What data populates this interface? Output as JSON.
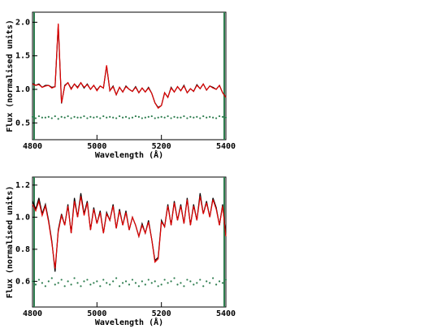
{
  "chart_data": [
    {
      "type": "line",
      "xlabel": "Wavelength (Å)",
      "ylabel": "Flux (normalised units)",
      "x": [
        4800,
        4810,
        4820,
        4830,
        4840,
        4850,
        4860,
        4870,
        4880,
        4890,
        4900,
        4910,
        4920,
        4930,
        4940,
        4950,
        4960,
        4970,
        4980,
        4990,
        5000,
        5010,
        5020,
        5030,
        5040,
        5050,
        5060,
        5070,
        5080,
        5090,
        5100,
        5110,
        5120,
        5130,
        5140,
        5150,
        5160,
        5170,
        5180,
        5190,
        5200,
        5210,
        5220,
        5230,
        5240,
        5250,
        5260,
        5270,
        5280,
        5290,
        5300,
        5310,
        5320,
        5330,
        5340,
        5350,
        5360,
        5370,
        5380,
        5390,
        5400
      ],
      "xlim": [
        4800,
        5400
      ],
      "xticks": [
        4800,
        5000,
        5200,
        5400
      ],
      "ylim": [
        0.25,
        2.15
      ],
      "yticks": [
        0.5,
        {
          "value": 1,
          "label": "1.0"
        },
        1.5,
        {
          "value": 2,
          "label": "2.0"
        }
      ],
      "series": [
        {
          "color": "#000000",
          "values": [
            1.09,
            1.06,
            1.08,
            1.03,
            1.06,
            1.06,
            1.03,
            1.04,
            1.96,
            0.79,
            1.06,
            1.1,
            1.01,
            1.08,
            1.03,
            1.1,
            1.02,
            1.08,
            1.0,
            1.06,
            0.99,
            1.05,
            1.02,
            1.35,
            0.98,
            1.05,
            0.92,
            1.03,
            0.96,
            1.05,
            1.0,
            0.97,
            1.04,
            0.95,
            1.02,
            0.96,
            1.03,
            0.94,
            0.8,
            0.73,
            0.76,
            0.95,
            0.88,
            1.03,
            0.96,
            1.04,
            0.98,
            1.06,
            0.95,
            1.01,
            0.97,
            1.07,
            1.01,
            1.08,
            0.99,
            1.05,
            1.03,
            1.0,
            1.06,
            0.95,
            0.88
          ]
        },
        {
          "color": "#e00000",
          "values": [
            1.08,
            1.06,
            1.07,
            1.03,
            1.05,
            1.06,
            1.02,
            1.04,
            1.98,
            0.8,
            1.05,
            1.1,
            1.0,
            1.08,
            1.02,
            1.1,
            1.03,
            1.07,
            1.0,
            1.06,
            0.98,
            1.05,
            1.02,
            1.36,
            0.98,
            1.04,
            0.92,
            1.03,
            0.96,
            1.04,
            1.0,
            0.97,
            1.03,
            0.95,
            1.02,
            0.96,
            1.02,
            0.94,
            0.8,
            0.72,
            0.76,
            0.95,
            0.88,
            1.02,
            0.96,
            1.04,
            0.98,
            1.05,
            0.95,
            1.01,
            0.97,
            1.06,
            1.01,
            1.08,
            0.99,
            1.05,
            1.02,
            1.0,
            1.06,
            0.95,
            0.88
          ]
        },
        {
          "color": "#2e7d4f",
          "marker": "dots",
          "values": [
            0.59,
            0.57,
            0.6,
            0.58,
            0.58,
            0.59,
            0.57,
            0.6,
            0.56,
            0.59,
            0.58,
            0.6,
            0.57,
            0.59,
            0.58,
            0.58,
            0.6,
            0.57,
            0.59,
            0.58,
            0.59,
            0.57,
            0.6,
            0.58,
            0.59,
            0.58,
            0.57,
            0.6,
            0.58,
            0.59,
            0.57,
            0.58,
            0.6,
            0.59,
            0.57,
            0.58,
            0.59,
            0.6,
            0.57,
            0.58,
            0.59,
            0.58,
            0.6,
            0.57,
            0.59,
            0.58,
            0.58,
            0.6,
            0.57,
            0.59,
            0.58,
            0.59,
            0.57,
            0.6,
            0.58,
            0.59,
            0.58,
            0.57,
            0.6,
            0.59,
            0.58
          ]
        }
      ]
    },
    {
      "type": "line",
      "xlabel": "Wavelength (Å)",
      "ylabel": "Flux (normalised units)",
      "x": [
        4800,
        4810,
        4820,
        4830,
        4840,
        4850,
        4860,
        4870,
        4880,
        4890,
        4900,
        4910,
        4920,
        4930,
        4940,
        4950,
        4960,
        4970,
        4980,
        4990,
        5000,
        5010,
        5020,
        5030,
        5040,
        5050,
        5060,
        5070,
        5080,
        5090,
        5100,
        5110,
        5120,
        5130,
        5140,
        5150,
        5160,
        5170,
        5180,
        5190,
        5200,
        5210,
        5220,
        5230,
        5240,
        5250,
        5260,
        5270,
        5280,
        5290,
        5300,
        5310,
        5320,
        5330,
        5340,
        5350,
        5360,
        5370,
        5380,
        5390,
        5400
      ],
      "xlim": [
        4800,
        5400
      ],
      "xticks": [
        4800,
        5000,
        5200,
        5400
      ],
      "ylim": [
        0.44,
        1.25
      ],
      "yticks": [
        0.6,
        0.8,
        {
          "value": 1,
          "label": "1.0"
        },
        1.2
      ],
      "series": [
        {
          "color": "#000000",
          "values": [
            1.1,
            1.05,
            1.12,
            1.02,
            1.08,
            0.98,
            0.85,
            0.66,
            0.92,
            1.02,
            0.95,
            1.08,
            0.9,
            1.12,
            1.0,
            1.15,
            1.02,
            1.1,
            0.92,
            1.06,
            0.96,
            1.04,
            0.9,
            1.03,
            0.98,
            1.08,
            0.93,
            1.05,
            0.95,
            1.04,
            0.92,
            1.0,
            0.95,
            0.88,
            0.96,
            0.9,
            0.98,
            0.86,
            0.73,
            0.75,
            0.98,
            0.94,
            1.08,
            0.95,
            1.1,
            0.98,
            1.08,
            0.96,
            1.12,
            0.95,
            1.08,
            0.98,
            1.15,
            1.02,
            1.1,
            1.0,
            1.12,
            1.06,
            0.95,
            1.08,
            0.88
          ]
        },
        {
          "color": "#e00000",
          "values": [
            1.08,
            1.04,
            1.1,
            1.01,
            1.07,
            0.97,
            0.84,
            0.68,
            0.91,
            1.01,
            0.95,
            1.07,
            0.9,
            1.1,
            1.0,
            1.13,
            1.01,
            1.09,
            0.92,
            1.05,
            0.96,
            1.03,
            0.9,
            1.02,
            0.98,
            1.07,
            0.93,
            1.04,
            0.95,
            1.03,
            0.92,
            1.0,
            0.95,
            0.88,
            0.95,
            0.9,
            0.97,
            0.86,
            0.72,
            0.74,
            0.97,
            0.94,
            1.07,
            0.95,
            1.09,
            0.98,
            1.07,
            0.96,
            1.11,
            0.95,
            1.07,
            0.98,
            1.13,
            1.02,
            1.09,
            1.0,
            1.11,
            1.05,
            0.95,
            1.07,
            0.88
          ]
        },
        {
          "color": "#2e7d4f",
          "marker": "dots",
          "values": [
            0.6,
            0.58,
            0.61,
            0.59,
            0.57,
            0.6,
            0.62,
            0.58,
            0.59,
            0.61,
            0.57,
            0.6,
            0.58,
            0.62,
            0.59,
            0.57,
            0.6,
            0.61,
            0.58,
            0.59,
            0.6,
            0.57,
            0.61,
            0.59,
            0.58,
            0.6,
            0.62,
            0.57,
            0.59,
            0.6,
            0.58,
            0.61,
            0.59,
            0.57,
            0.6,
            0.58,
            0.61,
            0.59,
            0.6,
            0.57,
            0.58,
            0.61,
            0.59,
            0.6,
            0.62,
            0.58,
            0.59,
            0.57,
            0.61,
            0.6,
            0.58,
            0.59,
            0.61,
            0.57,
            0.6,
            0.59,
            0.62,
            0.58,
            0.6,
            0.59,
            0.61
          ]
        }
      ]
    }
  ]
}
